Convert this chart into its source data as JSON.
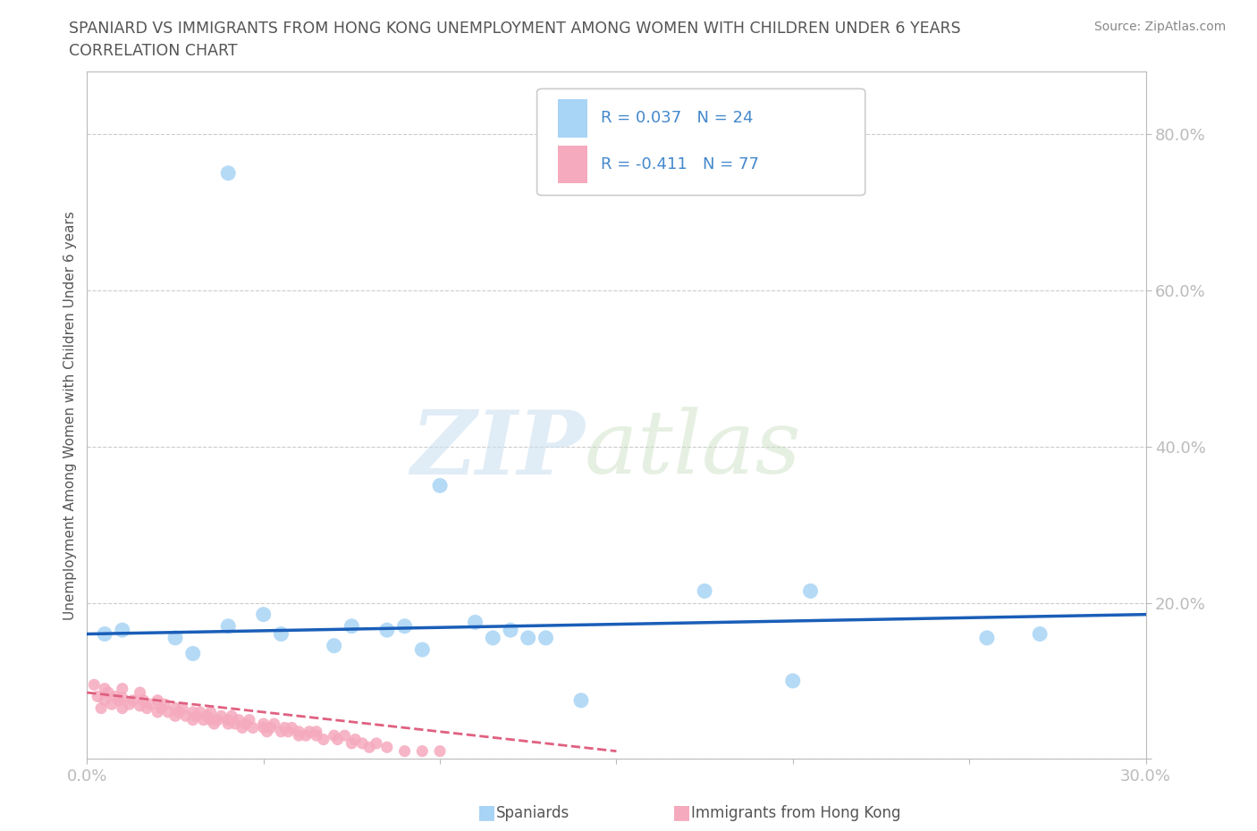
{
  "title_line1": "SPANIARD VS IMMIGRANTS FROM HONG KONG UNEMPLOYMENT AMONG WOMEN WITH CHILDREN UNDER 6 YEARS",
  "title_line2": "CORRELATION CHART",
  "source_text": "Source: ZipAtlas.com",
  "ylabel": "Unemployment Among Women with Children Under 6 years",
  "xlim": [
    0.0,
    0.3
  ],
  "ylim": [
    0.0,
    0.88
  ],
  "yticks": [
    0.0,
    0.2,
    0.4,
    0.6,
    0.8
  ],
  "ytick_labels": [
    "",
    "20.0%",
    "40.0%",
    "60.0%",
    "80.0%"
  ],
  "xticks": [
    0.0,
    0.05,
    0.1,
    0.15,
    0.2,
    0.25,
    0.3
  ],
  "xtick_labels": [
    "0.0%",
    "",
    "",
    "",
    "",
    "",
    "30.0%"
  ],
  "spaniards_label": "Spaniards",
  "hk_label": "Immigrants from Hong Kong",
  "spaniards_color": "#a8d4f5",
  "hk_color": "#f5aabe",
  "spaniards_line_color": "#1a5eb8",
  "hk_line_color": "#e06080",
  "background_color": "#ffffff",
  "grid_color": "#cccccc",
  "axis_color": "#bbbbbb",
  "title_color": "#555555",
  "tick_color": "#4488cc",
  "source_color": "#888888",
  "legend_text_color": "#4488cc",
  "spaniards_x": [
    0.005,
    0.01,
    0.025,
    0.03,
    0.04,
    0.04,
    0.05,
    0.055,
    0.07,
    0.075,
    0.085,
    0.09,
    0.095,
    0.1,
    0.11,
    0.115,
    0.12,
    0.125,
    0.13,
    0.14,
    0.175,
    0.2,
    0.205,
    0.255,
    0.27
  ],
  "spaniards_y": [
    0.16,
    0.165,
    0.155,
    0.135,
    0.75,
    0.17,
    0.185,
    0.16,
    0.145,
    0.17,
    0.165,
    0.17,
    0.14,
    0.35,
    0.175,
    0.155,
    0.165,
    0.155,
    0.155,
    0.075,
    0.215,
    0.1,
    0.215,
    0.155,
    0.16
  ],
  "hk_x": [
    0.002,
    0.003,
    0.004,
    0.005,
    0.005,
    0.006,
    0.007,
    0.008,
    0.009,
    0.01,
    0.01,
    0.01,
    0.012,
    0.013,
    0.015,
    0.015,
    0.016,
    0.017,
    0.018,
    0.02,
    0.02,
    0.021,
    0.022,
    0.023,
    0.025,
    0.025,
    0.026,
    0.027,
    0.028,
    0.03,
    0.03,
    0.031,
    0.032,
    0.033,
    0.034,
    0.035,
    0.035,
    0.036,
    0.037,
    0.038,
    0.04,
    0.04,
    0.041,
    0.042,
    0.043,
    0.044,
    0.045,
    0.046,
    0.047,
    0.05,
    0.05,
    0.051,
    0.052,
    0.053,
    0.055,
    0.056,
    0.057,
    0.058,
    0.06,
    0.06,
    0.062,
    0.063,
    0.065,
    0.065,
    0.067,
    0.07,
    0.071,
    0.073,
    0.075,
    0.076,
    0.078,
    0.08,
    0.082,
    0.085,
    0.09,
    0.095,
    0.1
  ],
  "hk_y": [
    0.095,
    0.08,
    0.065,
    0.09,
    0.075,
    0.085,
    0.07,
    0.08,
    0.075,
    0.09,
    0.078,
    0.065,
    0.07,
    0.075,
    0.085,
    0.068,
    0.075,
    0.065,
    0.07,
    0.075,
    0.06,
    0.065,
    0.07,
    0.06,
    0.065,
    0.055,
    0.06,
    0.065,
    0.055,
    0.06,
    0.05,
    0.055,
    0.06,
    0.05,
    0.055,
    0.05,
    0.06,
    0.045,
    0.05,
    0.055,
    0.045,
    0.05,
    0.055,
    0.045,
    0.05,
    0.04,
    0.045,
    0.05,
    0.04,
    0.04,
    0.045,
    0.035,
    0.04,
    0.045,
    0.035,
    0.04,
    0.035,
    0.04,
    0.03,
    0.035,
    0.03,
    0.035,
    0.03,
    0.035,
    0.025,
    0.03,
    0.025,
    0.03,
    0.02,
    0.025,
    0.02,
    0.015,
    0.02,
    0.015,
    0.01,
    0.01,
    0.01
  ],
  "sp_trend_x": [
    0.0,
    0.3
  ],
  "sp_trend_y": [
    0.16,
    0.185
  ],
  "hk_trend_x": [
    0.0,
    0.15
  ],
  "hk_trend_y": [
    0.085,
    0.01
  ]
}
